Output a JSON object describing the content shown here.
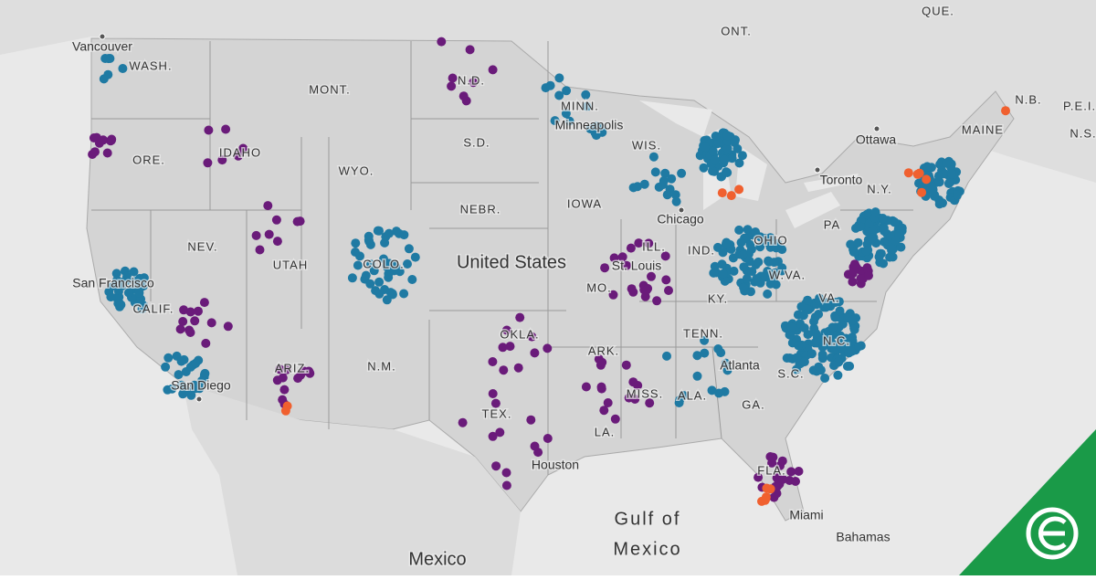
{
  "map": {
    "labels": [
      "QUE.",
      "ONT.",
      "Vancouver",
      "WASH.",
      "MONT.",
      "N.D.",
      "MINN.",
      "Minneapolis",
      "WIS.",
      "S.D.",
      "IDAHO",
      "ORE.",
      "WYO.",
      "N.B.",
      "P.E.I.",
      "N.S.",
      "MAINE",
      "Ottawa",
      "Toronto",
      "N.Y.",
      "PA",
      "NEBR.",
      "IOWA",
      "Chicago",
      "ILL.",
      "IND.",
      "OHIO",
      "NEV.",
      "UTAH",
      "United States",
      "St. Louis",
      "COLO.",
      "San Francisco",
      "CALIF.",
      "MO.",
      "W.VA.",
      "VA.",
      "KY.",
      "TENN.",
      "N.C.",
      "OKLA.",
      "ARK.",
      "ARIZ.",
      "N.M.",
      "S.C.",
      "Atlanta",
      "MISS.",
      "ALA.",
      "GA.",
      "San Diego",
      "TEX.",
      "LA.",
      "Houston",
      "FLA.",
      "Miami",
      "Bahamas",
      "Mexico"
    ],
    "gulf": [
      "Gulf of",
      "Mexico"
    ]
  }
}
